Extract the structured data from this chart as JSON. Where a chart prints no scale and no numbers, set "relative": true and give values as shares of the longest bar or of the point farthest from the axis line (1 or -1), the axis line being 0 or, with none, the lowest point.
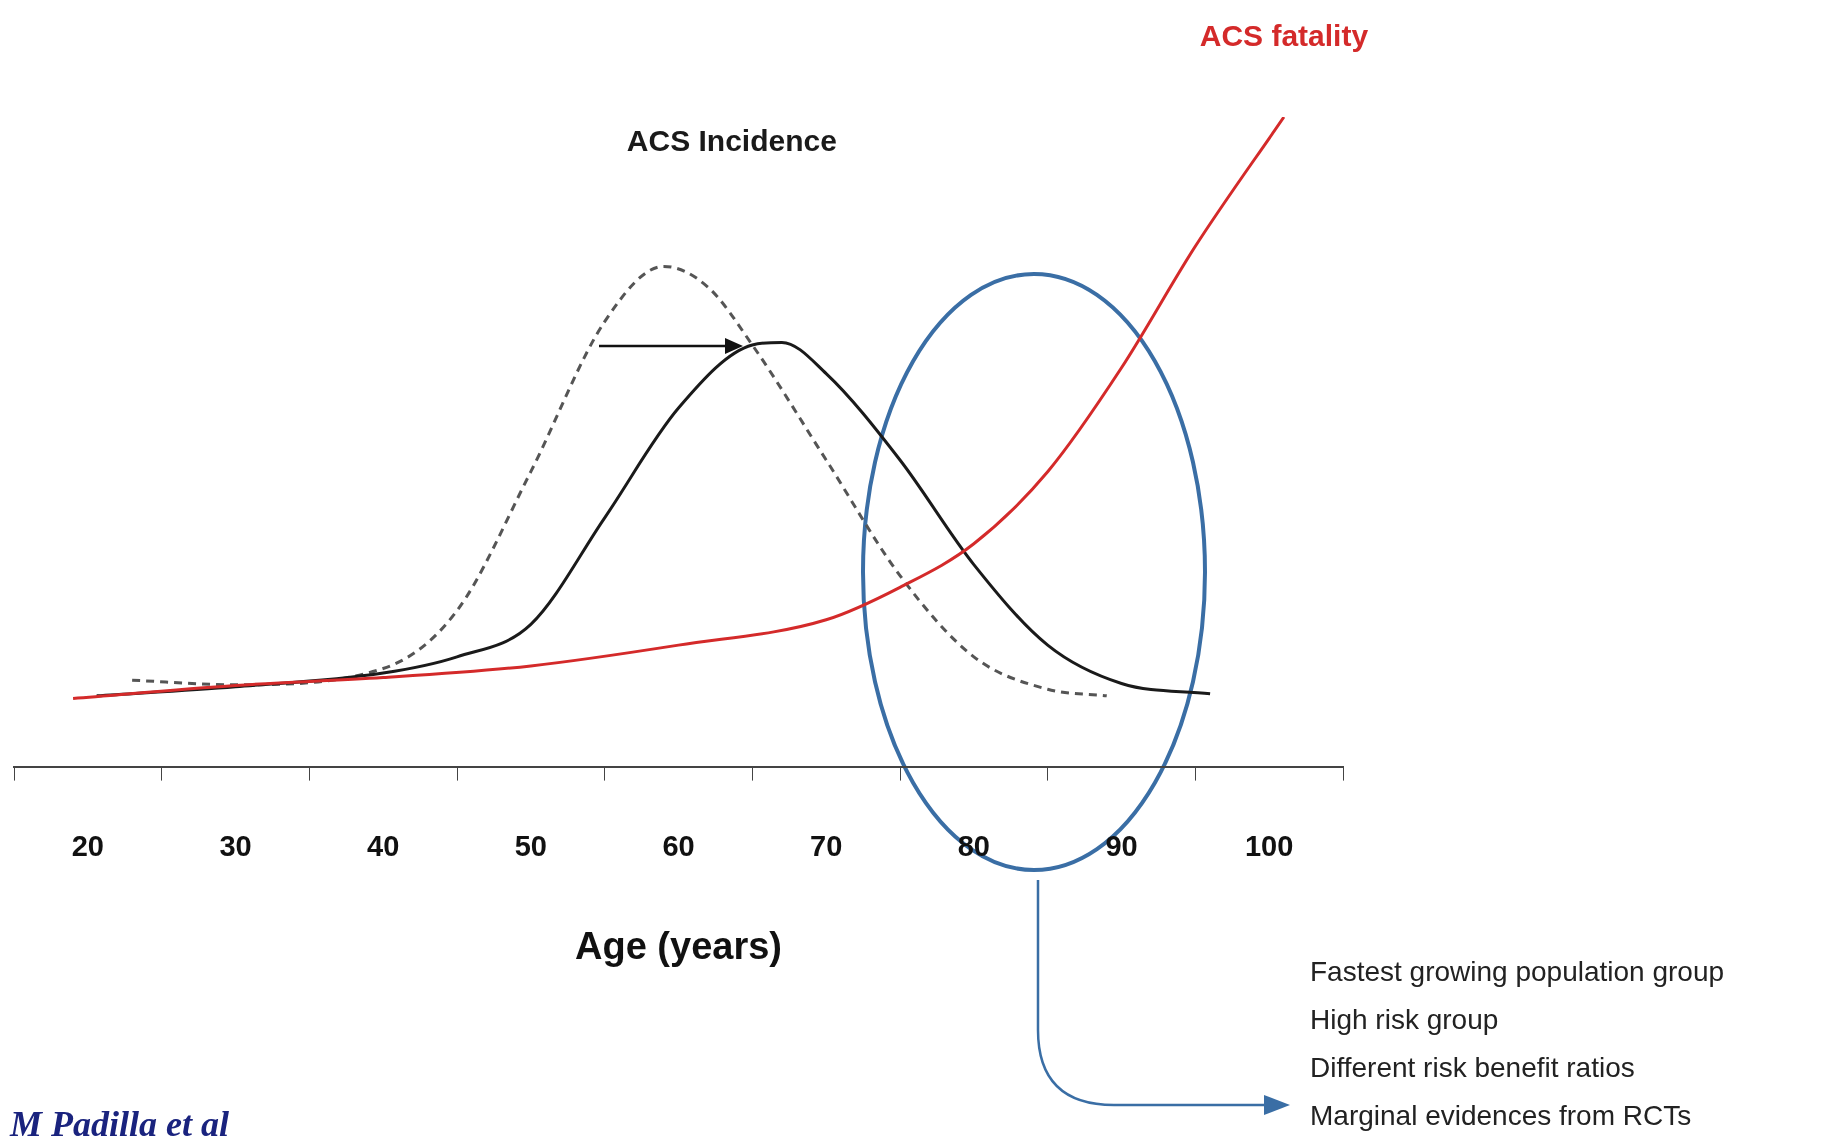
{
  "chart_data": {
    "type": "line",
    "relative": true,
    "xlabel": "Age (years)",
    "xlim": [
      15,
      105
    ],
    "xticks": [
      {
        "value": 15,
        "label": null
      },
      20,
      {
        "value": 25,
        "label": null
      },
      30,
      {
        "value": 35,
        "label": null
      },
      40,
      {
        "value": 45,
        "label": null
      },
      50,
      {
        "value": 55,
        "label": null
      },
      60,
      {
        "value": 65,
        "label": null
      },
      70,
      {
        "value": 75,
        "label": null
      },
      80,
      {
        "value": 85,
        "label": null
      },
      90,
      {
        "value": 95,
        "label": null
      },
      100,
      {
        "value": 105,
        "label": null
      }
    ],
    "grid": false,
    "legend": false,
    "marker": "none",
    "tick_labels": "x",
    "series": [
      {
        "name": "ACS fatality",
        "color": "#d42a2a",
        "line_style": "solid",
        "x": [
          19,
          30,
          40,
          50,
          60,
          70,
          75,
          80,
          85,
          90,
          95,
          101
        ],
        "values": [
          0.105,
          0.125,
          0.137,
          0.155,
          0.187,
          0.226,
          0.276,
          0.343,
          0.454,
          0.614,
          0.801,
          1.0
        ]
      },
      {
        "name": "ACS Incidence",
        "color": "#1a1a1a",
        "line_style": "solid",
        "x": [
          20.6,
          30,
          40,
          45,
          50,
          55,
          60,
          65,
          67,
          70,
          75,
          80,
          85,
          90,
          96
        ],
        "values": [
          0.109,
          0.123,
          0.144,
          0.169,
          0.219,
          0.383,
          0.552,
          0.649,
          0.653,
          0.605,
          0.472,
          0.311,
          0.187,
          0.128,
          0.112
        ]
      },
      {
        "color": "#555555",
        "line_style": "dashed",
        "x": [
          23,
          30,
          40,
          45,
          50,
          55,
          59,
          62,
          65,
          70,
          75,
          80,
          85,
          89
        ],
        "values": [
          0.133,
          0.126,
          0.151,
          0.24,
          0.454,
          0.685,
          0.77,
          0.738,
          0.649,
          0.472,
          0.294,
          0.169,
          0.119,
          0.109
        ]
      }
    ],
    "annotations": [
      "Fastest growing population group",
      "High risk group",
      "Different risk benefit ratios",
      "Marginal evidences from RCTs",
      "M Padilla et al"
    ]
  }
}
